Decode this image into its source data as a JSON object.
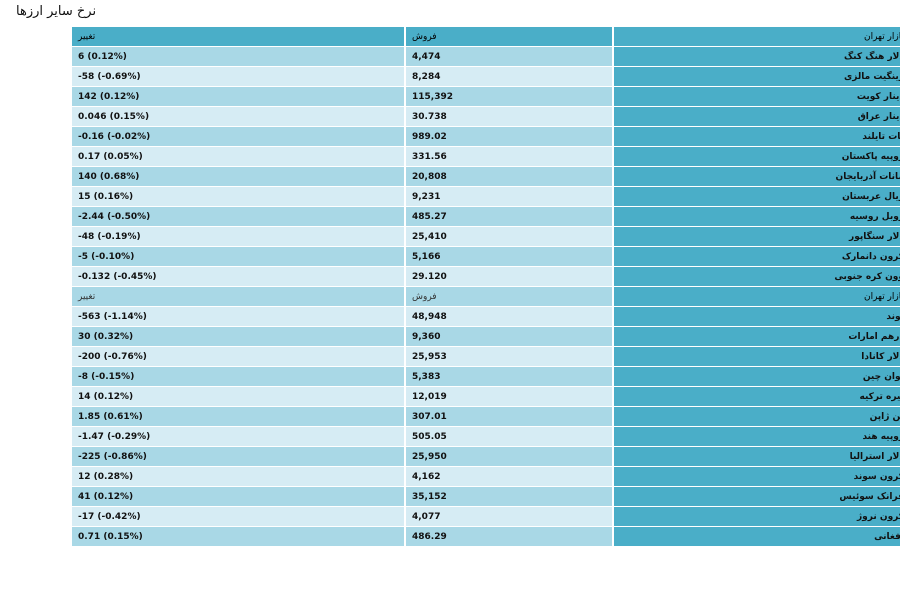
{
  "page": {
    "title": "نرخ سایر ارزها"
  },
  "header": {
    "market": "بازار تهران",
    "sell": "فروش",
    "change": "تغییر"
  },
  "group1": [
    {
      "name": "دلار هنگ کنگ",
      "sell": "4,474",
      "change": "6 (0.12%)"
    },
    {
      "name": "رینگیت مالزی",
      "sell": "8,284",
      "change": "-58 (-0.69%)"
    },
    {
      "name": "دینار کویت",
      "sell": "115,392",
      "change": "142 (0.12%)"
    },
    {
      "name": "دینار عراق",
      "sell": "30.738",
      "change": "0.046 (0.15%)"
    },
    {
      "name": "بات تایلند",
      "sell": "989.02",
      "change": "-0.16 (-0.02%)"
    },
    {
      "name": "روپیه پاکستان",
      "sell": "331.56",
      "change": "0.17 (0.05%)"
    },
    {
      "name": "مانات آذربایجان",
      "sell": "20,808",
      "change": "140 (0.68%)"
    },
    {
      "name": "ریال عربستان",
      "sell": "9,231",
      "change": "15 (0.16%)"
    },
    {
      "name": "روبل روسیه",
      "sell": "485.27",
      "change": "-2.44 (-0.50%)"
    },
    {
      "name": "دلار سنگاپور",
      "sell": "25,410",
      "change": "-48 (-0.19%)"
    },
    {
      "name": "کرون دانمارک",
      "sell": "5,166",
      "change": "-5 (-0.10%)"
    },
    {
      "name": "وون کره جنوبی",
      "sell": "29.120",
      "change": "-0.132 (-0.45%)"
    }
  ],
  "group2": [
    {
      "name": "پوند",
      "sell": "48,948",
      "change": "-563 (-1.14%)"
    },
    {
      "name": "درهم امارات",
      "sell": "9,360",
      "change": "30 (0.32%)"
    },
    {
      "name": "دلار کانادا",
      "sell": "25,953",
      "change": "-200 (-0.76%)"
    },
    {
      "name": "یوان چین",
      "sell": "5,383",
      "change": "-8 (-0.15%)"
    },
    {
      "name": "لیره ترکیه",
      "sell": "12,019",
      "change": "14 (0.12%)"
    },
    {
      "name": "ین ژاپن",
      "sell": "307.01",
      "change": "1.85 (0.61%)"
    },
    {
      "name": "روپیه هند",
      "sell": "505.05",
      "change": "-1.47 (-0.29%)"
    },
    {
      "name": "دلار استرالیا",
      "sell": "25,950",
      "change": "-225 (-0.86%)"
    },
    {
      "name": "کرون سوند",
      "sell": "4,162",
      "change": "12 (0.28%)"
    },
    {
      "name": "فرانک سوئیس",
      "sell": "35,152",
      "change": "41 (0.12%)"
    },
    {
      "name": "کرون نروژ",
      "sell": "4,077",
      "change": "-17 (-0.42%)"
    },
    {
      "name": "افغانی",
      "sell": "486.29",
      "change": "0.71 (0.15%)"
    }
  ]
}
